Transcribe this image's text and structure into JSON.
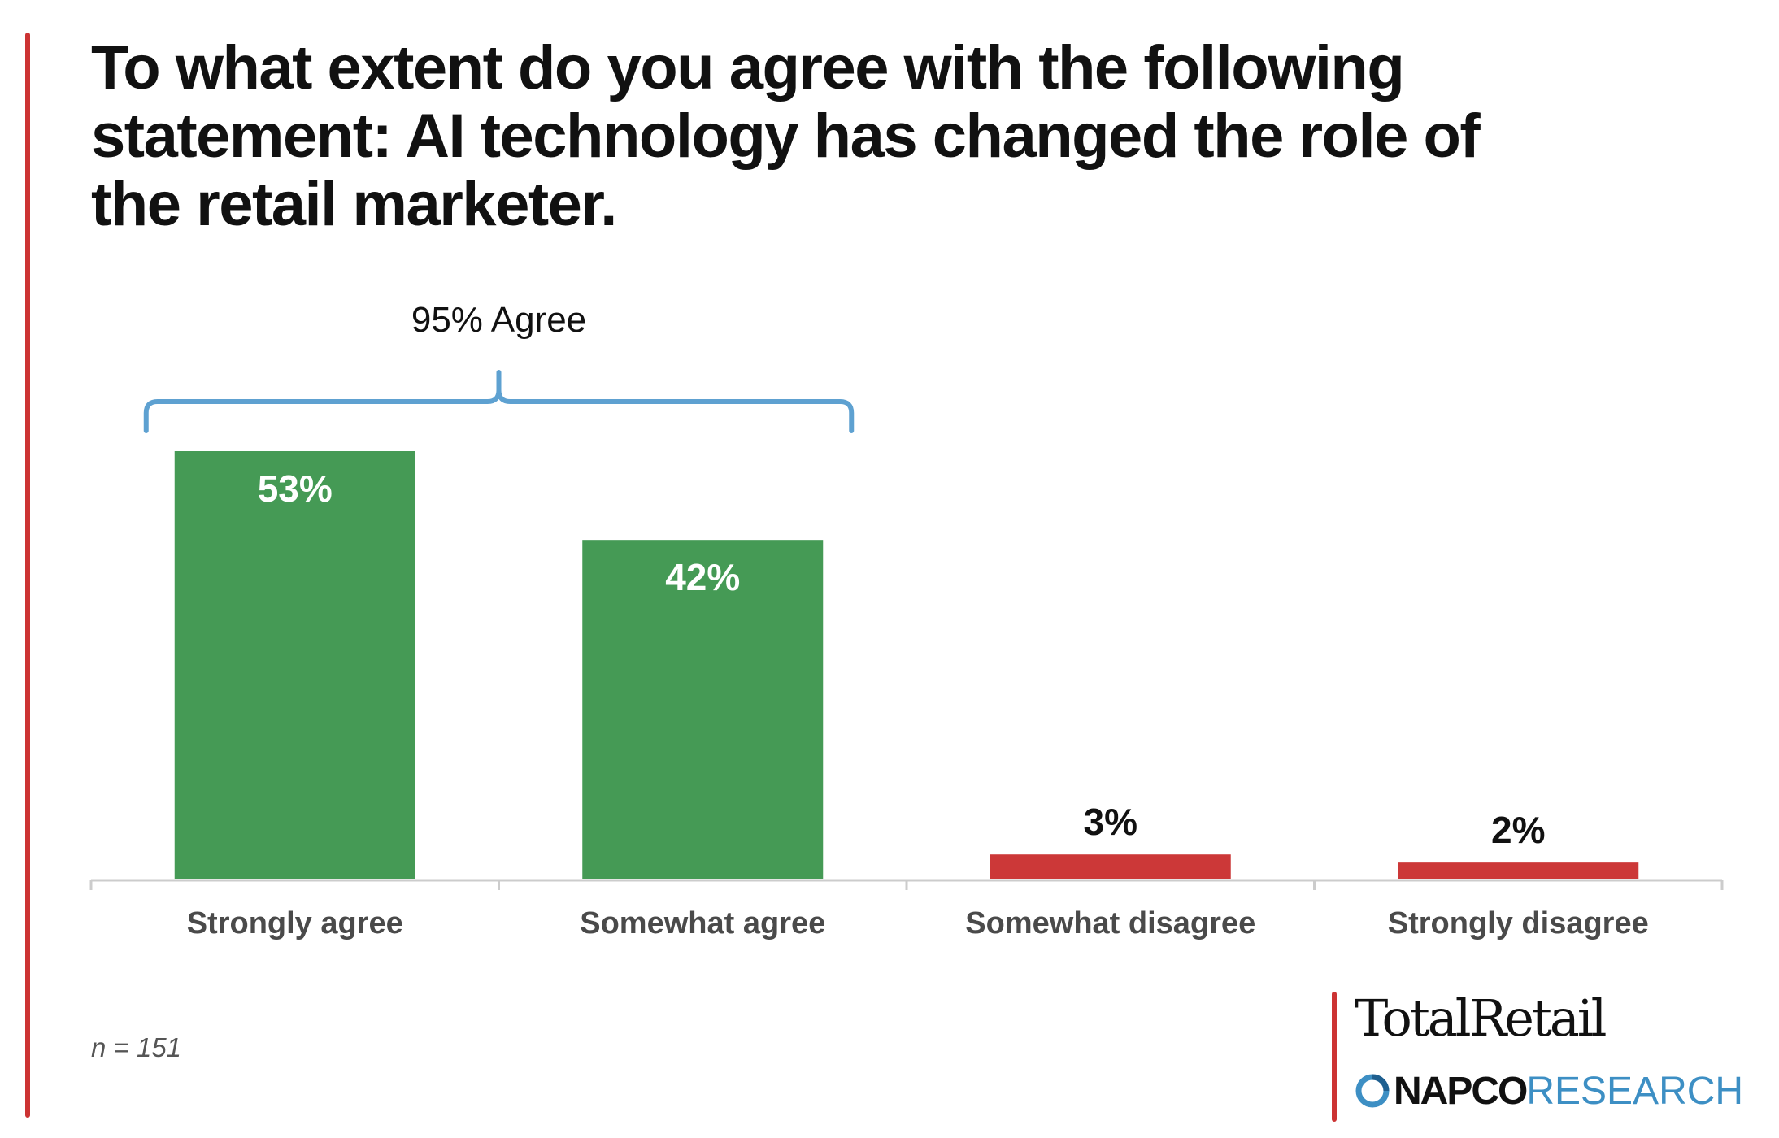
{
  "chart_data": {
    "type": "bar",
    "title": "To what extent do you agree with the following statement: AI technology has changed the role of the retail marketer.",
    "categories": [
      "Strongly agree",
      "Somewhat agree",
      "Somewhat disagree",
      "Strongly disagree"
    ],
    "values": [
      53,
      42,
      3,
      2
    ],
    "value_labels": [
      "53%",
      "42%",
      "3%",
      "2%"
    ],
    "unit": "%",
    "ylim": [
      0,
      53
    ],
    "grid": false,
    "colors": [
      "#459a55",
      "#459a55",
      "#cc3838",
      "#cc3838"
    ],
    "bracket": {
      "label": "95% Agree",
      "spans": [
        "Strongly agree",
        "Somewhat agree"
      ],
      "color": "#5ea1d1"
    },
    "note": "n = 151"
  },
  "branding": {
    "publication": "TotalRetail",
    "napco": "NAPCO",
    "research": "RESEARCH",
    "accent_color": "#cc3333",
    "research_color": "#3d8fc4",
    "mark_icon": "napco-circle-icon"
  }
}
